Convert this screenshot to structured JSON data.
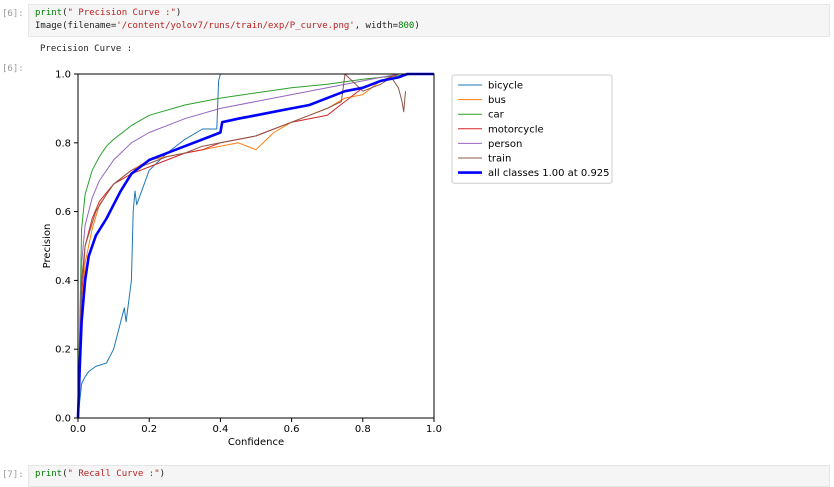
{
  "cells": [
    {
      "prompt": "[6]:",
      "fn": "print",
      "arg": "\" Precision Curve :\"",
      "line2_fn": "Image",
      "line2_arg1": "filename=",
      "line2_str": "'/content/yolov7/runs/train/exp/P_curve.png'",
      "line2_arg2": ", width=",
      "line2_num": "800"
    },
    {
      "prompt": "[7]:",
      "fn": "print",
      "arg": "\" Recall Curve :\""
    }
  ],
  "output": {
    "prompt": "[6]:",
    "text": "Precision Curve :"
  },
  "chart_data": {
    "type": "line",
    "title": "",
    "xlabel": "Confidence",
    "ylabel": "Precision",
    "xlim": [
      0,
      1
    ],
    "ylim": [
      0,
      1
    ],
    "xticks": [
      "0.0",
      "0.2",
      "0.4",
      "0.6",
      "0.8",
      "1.0"
    ],
    "yticks": [
      "0.0",
      "0.2",
      "0.4",
      "0.6",
      "0.8",
      "1.0"
    ],
    "grid": false,
    "legend_position": "outside-right",
    "series": [
      {
        "name": "bicycle",
        "color": "#1f77b4",
        "width": 1,
        "x": [
          0,
          0.01,
          0.02,
          0.03,
          0.05,
          0.08,
          0.1,
          0.12,
          0.13,
          0.135,
          0.15,
          0.155,
          0.16,
          0.165,
          0.2,
          0.25,
          0.3,
          0.35,
          0.39,
          0.395,
          0.4,
          0.42,
          1.0
        ],
        "y": [
          0.0,
          0.1,
          0.12,
          0.135,
          0.15,
          0.16,
          0.2,
          0.28,
          0.32,
          0.28,
          0.4,
          0.6,
          0.66,
          0.62,
          0.72,
          0.77,
          0.81,
          0.84,
          0.84,
          0.98,
          1.0,
          1.0,
          1.0
        ]
      },
      {
        "name": "bus",
        "color": "#ff7f0e",
        "width": 1,
        "x": [
          0,
          0.01,
          0.02,
          0.04,
          0.06,
          0.1,
          0.15,
          0.2,
          0.25,
          0.3,
          0.35,
          0.4,
          0.45,
          0.5,
          0.55,
          0.6,
          0.65,
          0.7,
          0.75,
          0.8,
          0.85,
          0.9,
          0.92,
          1.0
        ],
        "y": [
          0.0,
          0.3,
          0.45,
          0.55,
          0.62,
          0.68,
          0.72,
          0.75,
          0.76,
          0.77,
          0.78,
          0.79,
          0.8,
          0.78,
          0.83,
          0.86,
          0.88,
          0.9,
          0.93,
          0.94,
          0.98,
          0.99,
          1.0,
          1.0
        ]
      },
      {
        "name": "car",
        "color": "#2ca02c",
        "width": 1,
        "x": [
          0,
          0.01,
          0.02,
          0.04,
          0.06,
          0.08,
          0.1,
          0.15,
          0.2,
          0.3,
          0.4,
          0.5,
          0.6,
          0.7,
          0.8,
          0.85,
          0.9,
          0.95,
          1.0
        ],
        "y": [
          0.0,
          0.55,
          0.65,
          0.72,
          0.76,
          0.79,
          0.81,
          0.85,
          0.88,
          0.91,
          0.93,
          0.945,
          0.96,
          0.97,
          0.985,
          0.99,
          0.995,
          1.0,
          1.0
        ]
      },
      {
        "name": "motorcycle",
        "color": "#d62728",
        "width": 1,
        "x": [
          0,
          0.01,
          0.02,
          0.04,
          0.06,
          0.1,
          0.15,
          0.2,
          0.25,
          0.3,
          0.35,
          0.4,
          0.45,
          0.5,
          0.55,
          0.6,
          0.65,
          0.7,
          0.75,
          0.8,
          0.85,
          0.9,
          1.0
        ],
        "y": [
          0.0,
          0.35,
          0.5,
          0.58,
          0.63,
          0.68,
          0.71,
          0.73,
          0.75,
          0.77,
          0.78,
          0.8,
          0.81,
          0.82,
          0.84,
          0.86,
          0.87,
          0.88,
          0.92,
          0.96,
          0.98,
          1.0,
          1.0
        ]
      },
      {
        "name": "person",
        "color": "#9467bd",
        "width": 1,
        "x": [
          0,
          0.01,
          0.02,
          0.04,
          0.06,
          0.08,
          0.1,
          0.15,
          0.2,
          0.3,
          0.4,
          0.5,
          0.6,
          0.7,
          0.8,
          0.85,
          0.9,
          1.0
        ],
        "y": [
          0.0,
          0.45,
          0.56,
          0.64,
          0.69,
          0.72,
          0.75,
          0.8,
          0.83,
          0.87,
          0.9,
          0.92,
          0.94,
          0.96,
          0.98,
          0.99,
          1.0,
          1.0
        ]
      },
      {
        "name": "train",
        "color": "#8c564b",
        "width": 1,
        "x": [
          0,
          0.01,
          0.02,
          0.05,
          0.08,
          0.1,
          0.15,
          0.2,
          0.25,
          0.3,
          0.35,
          0.4,
          0.45,
          0.5,
          0.55,
          0.6,
          0.65,
          0.7,
          0.74,
          0.75,
          0.8,
          0.85,
          0.88,
          0.9,
          0.91,
          0.915,
          0.92
        ],
        "y": [
          0.0,
          0.4,
          0.5,
          0.6,
          0.65,
          0.68,
          0.72,
          0.74,
          0.76,
          0.77,
          0.79,
          0.8,
          0.81,
          0.82,
          0.84,
          0.86,
          0.88,
          0.9,
          0.92,
          1.0,
          0.95,
          0.97,
          0.99,
          0.96,
          0.92,
          0.89,
          0.95
        ]
      },
      {
        "name": "all classes 1.00 at 0.925",
        "color": "#0000ff",
        "width": 2.6,
        "x": [
          0,
          0.005,
          0.01,
          0.02,
          0.03,
          0.05,
          0.08,
          0.1,
          0.12,
          0.15,
          0.2,
          0.25,
          0.3,
          0.35,
          0.4,
          0.405,
          0.45,
          0.5,
          0.55,
          0.6,
          0.65,
          0.7,
          0.75,
          0.8,
          0.85,
          0.9,
          0.925,
          1.0
        ],
        "y": [
          0.0,
          0.15,
          0.28,
          0.4,
          0.47,
          0.53,
          0.58,
          0.62,
          0.66,
          0.71,
          0.75,
          0.77,
          0.79,
          0.81,
          0.83,
          0.86,
          0.87,
          0.88,
          0.89,
          0.9,
          0.91,
          0.93,
          0.95,
          0.96,
          0.98,
          0.99,
          1.0,
          1.0
        ]
      }
    ]
  }
}
